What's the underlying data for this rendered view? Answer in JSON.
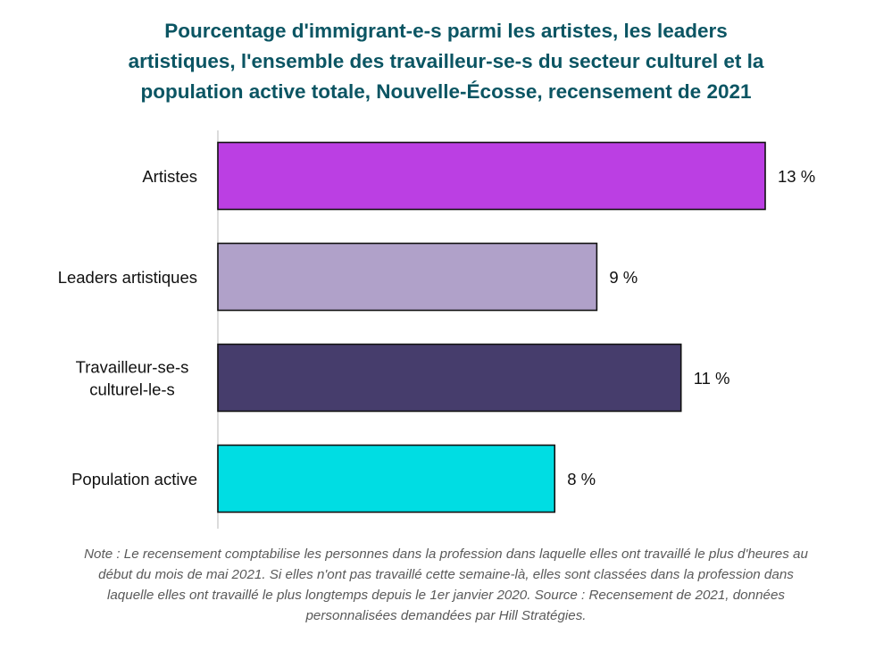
{
  "chart_data": {
    "type": "bar",
    "orientation": "horizontal",
    "title_lines": [
      "Pourcentage d'immigrant-e-s parmi les artistes, les leaders",
      "artistiques, l'ensemble des travailleur-se-s du secteur culturel et la",
      "population active totale, Nouvelle-Écosse, recensement de 2021"
    ],
    "categories": [
      {
        "lines": [
          "Artistes"
        ]
      },
      {
        "lines": [
          "Leaders artistiques"
        ]
      },
      {
        "lines": [
          "Travailleur-se-s",
          "culturel-le-s"
        ]
      },
      {
        "lines": [
          "Population active"
        ]
      }
    ],
    "values": [
      13,
      9,
      11,
      8
    ],
    "value_labels": [
      "13 %",
      "9 %",
      "11 %",
      "8 %"
    ],
    "colors": [
      "#bb3fe3",
      "#b0a1c9",
      "#463d6c",
      "#00dde3"
    ],
    "unit": "%",
    "xlim": [
      0,
      13
    ],
    "grid": false,
    "legend": "none",
    "note_lines": [
      "Note : Le recensement comptabilise les personnes dans la profession dans laquelle elles ont travaillé le plus d'heures au",
      "début du mois de mai 2021. Si elles n'ont pas travaillé cette semaine-là, elles sont classées dans la profession dans",
      "laquelle elles ont travaillé le plus longtemps depuis le 1er janvier 2020. Source : Recensement de 2021, données",
      "personnalisées demandées par Hill Stratégies."
    ]
  }
}
